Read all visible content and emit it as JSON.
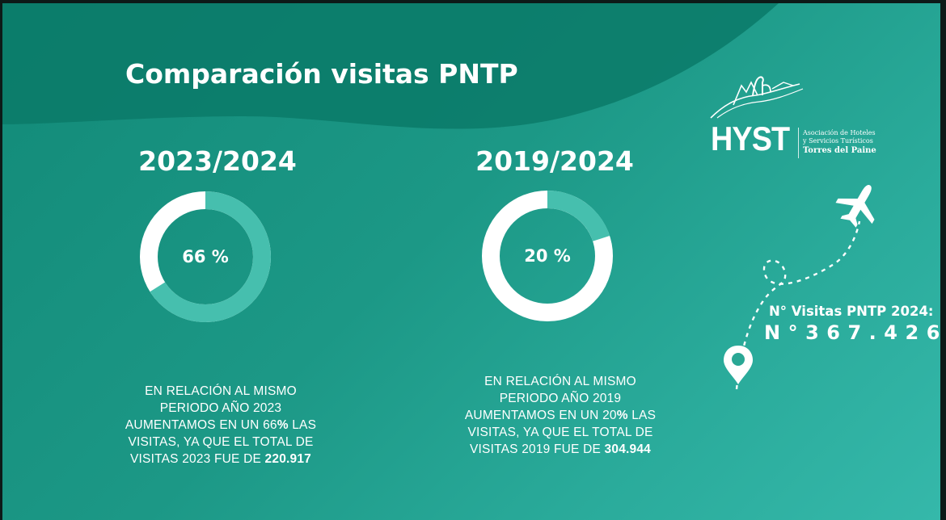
{
  "title": "Comparación visitas PNTP",
  "comparisons": [
    {
      "period": "2023/2024",
      "percent": 66,
      "percent_label": "66 %",
      "desc_line1": "EN RELACIÓN AL MISMO",
      "desc_line2": "PERIODO AÑO 2023",
      "desc_line3_a": "AUMENTAMOS EN UN 66",
      "desc_line3_b": "%",
      "desc_line3_c": " LAS",
      "desc_line4": "VISITAS, YA QUE EL TOTAL DE",
      "desc_line5_a": "VISITAS 2023 FUE DE ",
      "desc_line5_b": "220.917"
    },
    {
      "period": "2019/2024",
      "percent": 20,
      "percent_label": "20 %",
      "desc_line1": "EN RELACIÓN AL MISMO",
      "desc_line2": "PERIODO AÑO 2019",
      "desc_line3_a": "AUMENTAMOS EN UN 20",
      "desc_line3_b": "%",
      "desc_line3_c": " LAS",
      "desc_line4": "VISITAS, YA QUE EL TOTAL DE",
      "desc_line5_a": "VISITAS 2019 FUE DE ",
      "desc_line5_b": "304.944"
    }
  ],
  "logo": {
    "word": "HYST",
    "sub_line1": "Asociación de Hoteles",
    "sub_line2": "y Servicios Turísticos",
    "place": "Torres del Paine"
  },
  "visits": {
    "label": "N° Visitas PNTP 2024:",
    "value": "N°367.426"
  },
  "colors": {
    "ring_fill": "#ffffff",
    "ring_progress": "#46bfae",
    "background": "#1c9886",
    "wave": "#0b7a68"
  },
  "icons": [
    "airplane-icon",
    "location-pin-icon",
    "dashed-flight-path",
    "guanaco-mountain-logo-icon"
  ]
}
